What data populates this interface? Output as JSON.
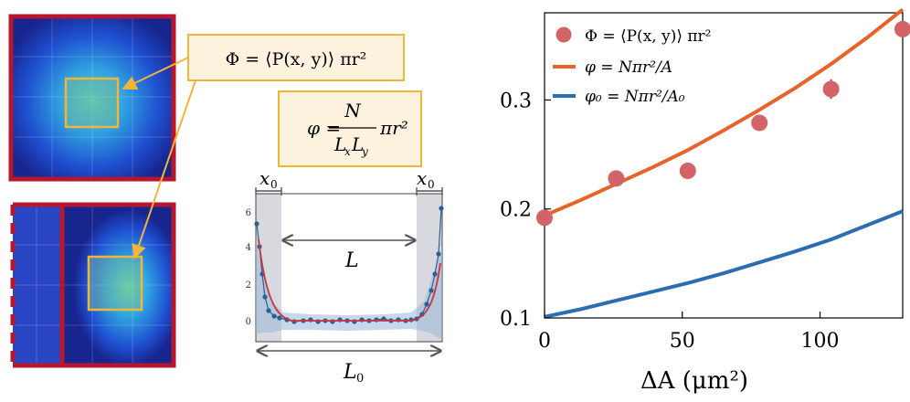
{
  "heatmaps": {
    "top_panel_name": "density heatmap full box",
    "bottom_panel_name": "density heatmap shifted wall"
  },
  "formulas": {
    "Phi": "Φ = ⟨P(x, y)⟩ πr²",
    "phi_numerator": "N",
    "phi_lhs": "φ =",
    "phi_den_L": "L",
    "phi_den_x": "x",
    "phi_den_y": "y",
    "phi_tail": "πr²"
  },
  "profile": {
    "x0_left": "x",
    "x0_right": "x",
    "x0_sub": "0",
    "L_label": "L",
    "L0_label": "L",
    "L0_sub": "0",
    "y_ticks": [
      "6",
      "4",
      "2",
      "0"
    ]
  },
  "colors": {
    "frame_red": "#b5172f",
    "highlight_orange": "#f0b63a",
    "formula_box_fill": "#fdf2dd",
    "marker_red": "#d36366",
    "line_orange": "#e8632a",
    "line_blue": "#2a6db0",
    "profile_blue": "#2c5e99",
    "profile_fit": "#c7363a"
  },
  "chart_data": {
    "type": "scatter",
    "xlabel": "ΔA (μm²)",
    "ylabel": "",
    "xlim": [
      0,
      130
    ],
    "ylim": [
      0.1,
      0.38
    ],
    "x_ticks": [
      "0",
      "50",
      "100"
    ],
    "y_ticks": [
      "0.1",
      "0.2",
      "0.3"
    ],
    "legend_position": "top-left",
    "series": [
      {
        "name": "Φ = ⟨P(x, y)⟩ πr²",
        "kind": "points",
        "x": [
          0,
          26,
          52,
          78,
          104,
          130
        ],
        "y": [
          0.192,
          0.228,
          0.235,
          0.279,
          0.31,
          0.365
        ],
        "err": [
          0.004,
          0.007,
          0.005,
          0.004,
          0.009,
          0.007
        ]
      },
      {
        "name": "φ = Nπr²/A",
        "kind": "line",
        "x": [
          0,
          13,
          26,
          39,
          52,
          65,
          78,
          91,
          104,
          117,
          130
        ],
        "y": [
          0.194,
          0.208,
          0.223,
          0.238,
          0.254,
          0.272,
          0.291,
          0.311,
          0.333,
          0.357,
          0.383
        ]
      },
      {
        "name": "φ₀ = Nπr²/A₀",
        "kind": "line",
        "x": [
          0,
          13,
          26,
          39,
          52,
          65,
          78,
          91,
          104,
          117,
          130
        ],
        "y": [
          0.101,
          0.108,
          0.116,
          0.124,
          0.132,
          0.141,
          0.151,
          0.161,
          0.172,
          0.185,
          0.198
        ]
      }
    ]
  }
}
